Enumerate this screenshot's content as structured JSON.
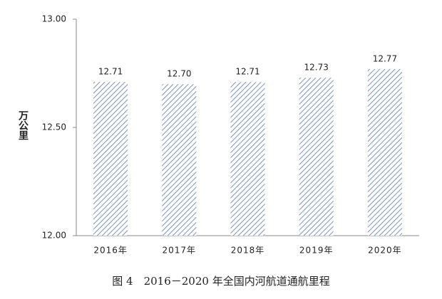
{
  "chart_data": {
    "type": "bar",
    "title": "图 4　2016－2020 年全国内河航道通航里程",
    "y_label": "万公里",
    "categories": [
      "2016年",
      "2017年",
      "2018年",
      "2019年",
      "2020年"
    ],
    "values": [
      12.71,
      12.7,
      12.71,
      12.73,
      12.77
    ],
    "value_labels": [
      "12.71",
      "12.70",
      "12.71",
      "12.73",
      "12.77"
    ],
    "color": "#5a78ad",
    "ylim": [
      12,
      13
    ],
    "yticks": [
      {
        "value": 12,
        "label": "12.00"
      },
      {
        "value": 12.5,
        "label": "12.50"
      },
      {
        "value": 13,
        "label": "13.00"
      }
    ],
    "grid": false
  }
}
